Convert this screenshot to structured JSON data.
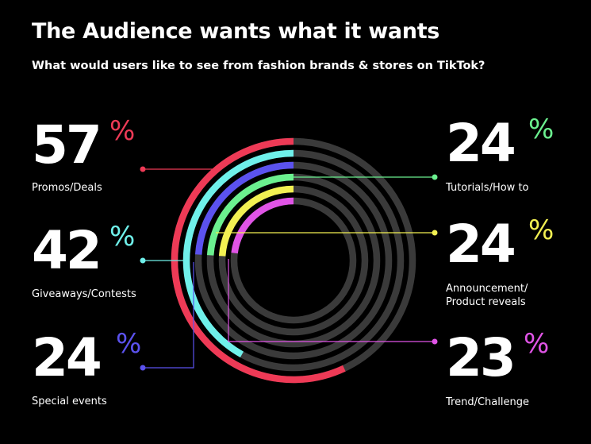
{
  "header": {
    "title": "The Audience wants what it wants",
    "subtitle": "What would users like to see from fashion brands & stores on TikTok?"
  },
  "chart_data": {
    "type": "radial-bar",
    "title": "The Audience wants what it wants",
    "subtitle": "What would users like to see from fashion brands & stores on TikTok?",
    "unit": "%",
    "track_color": "#3a3a3a",
    "series": [
      {
        "name": "Promos/Deals",
        "value": 57,
        "color": "#ee3a56"
      },
      {
        "name": "Giveaways/Contests",
        "value": 42,
        "color": "#6ff0ea"
      },
      {
        "name": "Special events",
        "value": 24,
        "color": "#5b52ee"
      },
      {
        "name": "Tutorials/How to",
        "value": 24,
        "color": "#6bf08f"
      },
      {
        "name": "Announcement/ Product reveals",
        "value": 24,
        "color": "#f2f052"
      },
      {
        "name": "Trend/Challenge",
        "value": 23,
        "color": "#e054e6"
      }
    ]
  },
  "stats": [
    {
      "value": "57",
      "unit": "%",
      "label": [
        "Promos/Deals"
      ],
      "color": "#ee3a56"
    },
    {
      "value": "42",
      "unit": "%",
      "label": [
        "Giveaways/Contests"
      ],
      "color": "#6ff0ea"
    },
    {
      "value": "24",
      "unit": "%",
      "label": [
        "Special events"
      ],
      "color": "#5b52ee"
    },
    {
      "value": "24",
      "unit": "%",
      "label": [
        "Tutorials/How to"
      ],
      "color": "#6bf08f"
    },
    {
      "value": "24",
      "unit": "%",
      "label": [
        "Announcement/",
        "Product reveals"
      ],
      "color": "#f2f052"
    },
    {
      "value": "23",
      "unit": "%",
      "label": [
        "Trend/Challenge"
      ],
      "color": "#e054e6"
    }
  ]
}
